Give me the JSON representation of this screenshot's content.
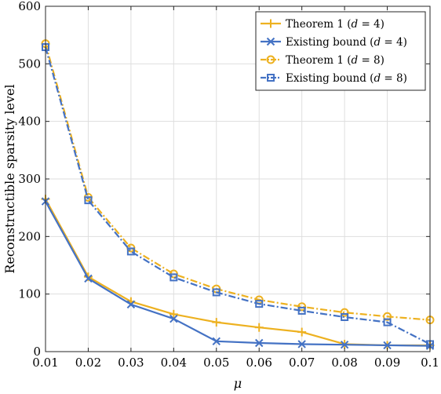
{
  "chart_data": {
    "type": "line",
    "xlabel": "μ",
    "ylabel": "Reconstructible sparsity level",
    "xlim": [
      0.01,
      0.1
    ],
    "ylim": [
      0,
      600
    ],
    "x_ticks": [
      "0.01",
      "0.02",
      "0.03",
      "0.04",
      "0.05",
      "0.06",
      "0.07",
      "0.08",
      "0.09",
      "0.1"
    ],
    "y_ticks": [
      "0",
      "100",
      "200",
      "300",
      "400",
      "500",
      "600"
    ],
    "grid": true,
    "legend_position": "top-right",
    "x": [
      0.01,
      0.02,
      0.03,
      0.04,
      0.05,
      0.06,
      0.07,
      0.08,
      0.09,
      0.1
    ],
    "series": [
      {
        "name": "Theorem 1 (d = 4)",
        "legend": {
          "prefix": "Theorem 1 (",
          "var": "d",
          "suffix": " = 4)"
        },
        "color": "#EDB120",
        "line_style": "solid",
        "marker": "plus",
        "values": [
          265,
          130,
          87,
          65,
          51,
          42,
          34,
          13,
          11,
          11
        ]
      },
      {
        "name": "Existing bound (d = 4)",
        "legend": {
          "prefix": "Existing bound (",
          "var": "d",
          "suffix": " = 4)"
        },
        "color": "#4472C4",
        "line_style": "solid",
        "marker": "x",
        "values": [
          261,
          127,
          82,
          57,
          18,
          15,
          13,
          12,
          11,
          10
        ]
      },
      {
        "name": "Theorem 1 (d = 8)",
        "legend": {
          "prefix": "Theorem 1 (",
          "var": "d",
          "suffix": " = 8)"
        },
        "color": "#EDB120",
        "line_style": "dashdot",
        "marker": "circle",
        "values": [
          535,
          268,
          180,
          135,
          109,
          90,
          78,
          68,
          61,
          55
        ]
      },
      {
        "name": "Existing bound (d = 8)",
        "legend": {
          "prefix": "Existing bound (",
          "var": "d",
          "suffix": " = 8)"
        },
        "color": "#4472C4",
        "line_style": "dashdot",
        "marker": "square",
        "values": [
          529,
          263,
          174,
          129,
          103,
          83,
          71,
          60,
          51,
          13
        ]
      }
    ]
  }
}
